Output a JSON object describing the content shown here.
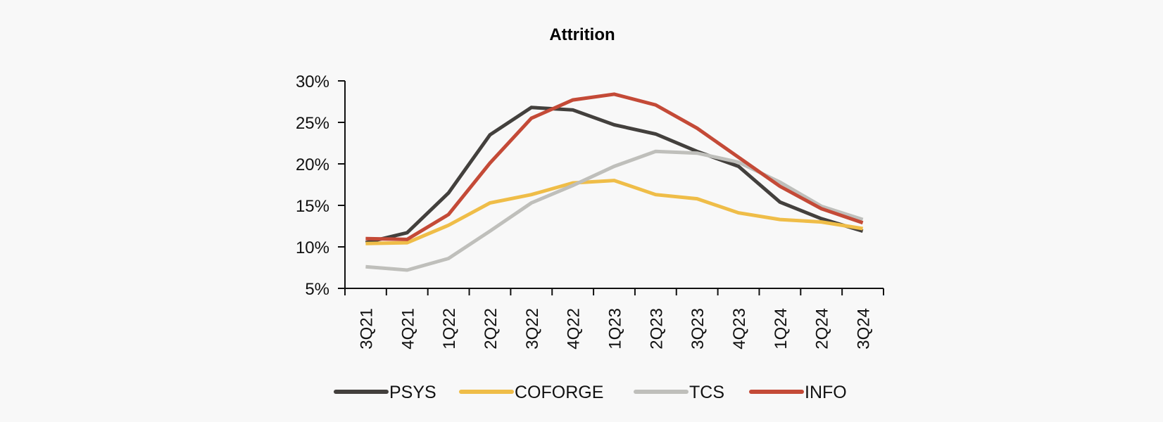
{
  "chart_data": {
    "type": "line",
    "title": "Attrition",
    "xlabel": "",
    "ylabel": "",
    "categories": [
      "3Q21",
      "4Q21",
      "1Q22",
      "2Q22",
      "3Q22",
      "4Q22",
      "1Q23",
      "2Q23",
      "3Q23",
      "4Q23",
      "1Q24",
      "2Q24",
      "3Q24"
    ],
    "yticks": [
      "5%",
      "10%",
      "15%",
      "20%",
      "25%",
      "30%"
    ],
    "ytick_values": [
      5,
      10,
      15,
      20,
      25,
      30
    ],
    "ylim": [
      5,
      30
    ],
    "grid": false,
    "legend_position": "bottom",
    "series": [
      {
        "name": "PSYS",
        "color": "#43403d",
        "values": [
          10.5,
          11.7,
          16.5,
          23.5,
          26.8,
          26.5,
          24.7,
          23.6,
          21.5,
          19.7,
          15.4,
          13.4,
          11.9
        ]
      },
      {
        "name": "COFORGE",
        "color": "#efbd48",
        "values": [
          10.4,
          10.5,
          12.6,
          15.3,
          16.3,
          17.7,
          18.0,
          16.3,
          15.8,
          14.1,
          13.3,
          13.0,
          12.2
        ]
      },
      {
        "name": "TCS",
        "color": "#bfbfbb",
        "values": [
          7.6,
          7.2,
          8.6,
          11.9,
          15.3,
          17.4,
          19.7,
          21.5,
          21.3,
          20.2,
          17.8,
          14.9,
          13.3
        ]
      },
      {
        "name": "INFO",
        "color": "#c44a37",
        "values": [
          11.0,
          10.9,
          13.9,
          20.1,
          25.5,
          27.7,
          28.4,
          27.1,
          24.3,
          20.8,
          17.3,
          14.6,
          12.9
        ]
      }
    ]
  }
}
